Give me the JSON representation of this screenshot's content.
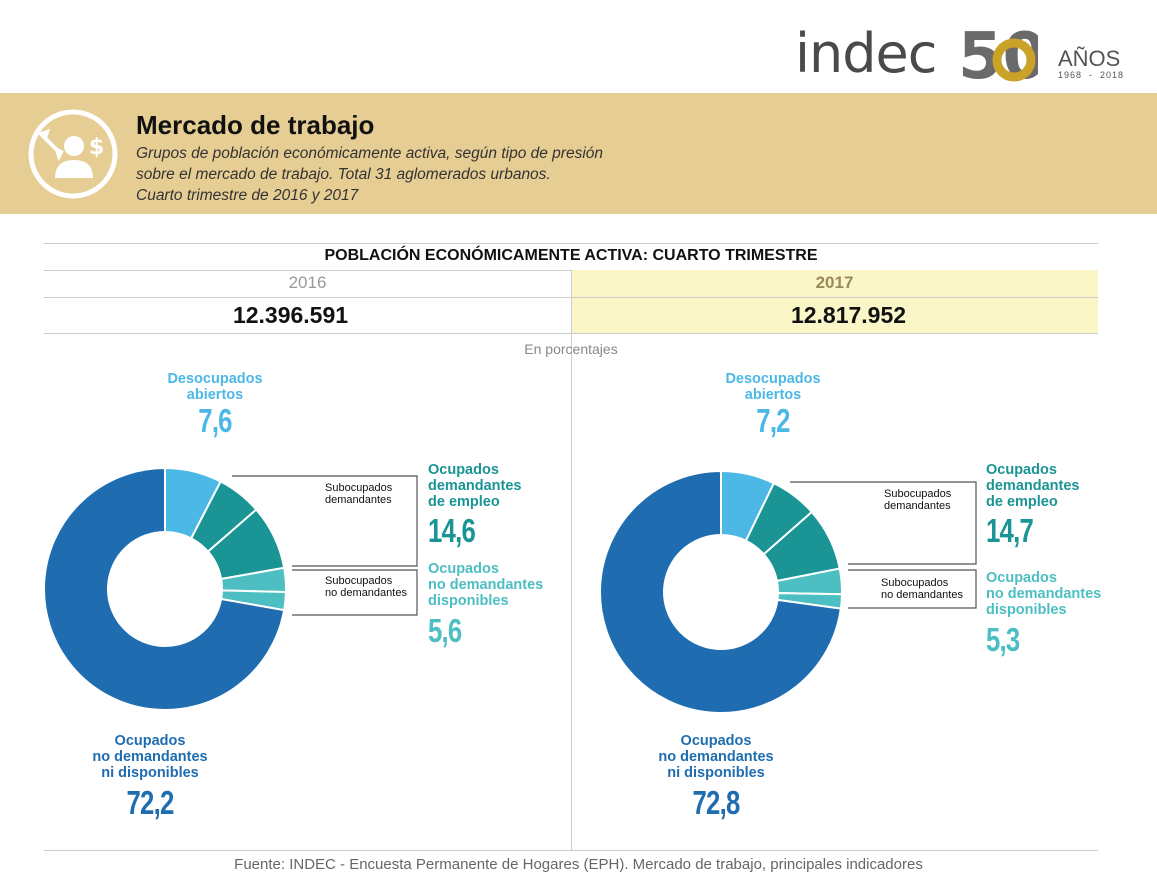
{
  "header": {
    "logo_text": "indec",
    "logo_number": "50",
    "logo_anos": "AÑOS",
    "logo_years": "1968  -  2018"
  },
  "banner": {
    "title": "Mercado de trabajo",
    "subtitle_lines": [
      "Grupos de población económicamente activa, según tipo de presión",
      "sobre el mercado de trabajo. Total 31 aglomerados urbanos.",
      "Cuarto trimestre de 2016 y 2017"
    ],
    "icon": "worker-money-icon"
  },
  "table": {
    "title": "POBLACIÓN ECONÓMICAMENTE ACTIVA: CUARTO TRIMESTRE",
    "years": [
      "2016",
      "2017"
    ],
    "totals": [
      "12.396.591",
      "12.817.952"
    ],
    "unit_note": "En porcentajes"
  },
  "colors": {
    "desocupados": "#4cb8e6",
    "subocupados_demandantes": "#1a9494",
    "ocupados_demandantes": "#1a9494",
    "subocupados_no_demandantes": "#4dbec2",
    "ocupados_no_demandantes_disponibles": "#4dbec2",
    "ocupados_no_demandantes_ni_disponibles": "#1f6db0"
  },
  "labels": {
    "desocupados": [
      "Desocupados",
      "abiertos"
    ],
    "ocupados_demandantes": [
      "Ocupados",
      "demandantes",
      "de empleo"
    ],
    "ocupados_no_demandantes_disponibles": [
      "Ocupados",
      "no demandantes",
      "disponibles"
    ],
    "ocupados_no_demandantes_ni_disponibles": [
      "Ocupados",
      "no demandantes",
      "ni disponibles"
    ],
    "subocupados_demandantes": [
      "Subocupados",
      "demandantes"
    ],
    "subocupados_no_demandantes": [
      "Subocupados",
      "no demandantes"
    ]
  },
  "chart_data": [
    {
      "type": "pie",
      "year": "2016",
      "categories": [
        "Desocupados abiertos",
        "Subocupados demandantes",
        "Ocupados demandantes de empleo (resto)",
        "Subocupados no demandantes",
        "Ocupados no demandantes disponibles (resto)",
        "Ocupados no demandantes ni disponibles"
      ],
      "values": [
        7.6,
        6.0,
        8.6,
        3.2,
        2.4,
        72.2
      ],
      "displayed": {
        "desocupados": "7,6",
        "ocupados_demandantes": "14,6",
        "ocupados_no_demandantes_disponibles": "5,6",
        "ocupados_no_demandantes_ni_disponibles": "72,2"
      }
    },
    {
      "type": "pie",
      "year": "2017",
      "categories": [
        "Desocupados abiertos",
        "Subocupados demandantes",
        "Ocupados demandantes de empleo (resto)",
        "Subocupados no demandantes",
        "Ocupados no demandantes disponibles (resto)",
        "Ocupados no demandantes ni disponibles"
      ],
      "values": [
        7.2,
        6.3,
        8.4,
        3.4,
        1.9,
        72.8
      ],
      "displayed": {
        "desocupados": "7,2",
        "ocupados_demandantes": "14,7",
        "ocupados_no_demandantes_disponibles": "5,3",
        "ocupados_no_demandantes_ni_disponibles": "72,8"
      }
    }
  ],
  "footer": {
    "source": "Fuente: INDEC - Encuesta Permanente de Hogares (EPH). Mercado de trabajo, principales indicadores"
  }
}
